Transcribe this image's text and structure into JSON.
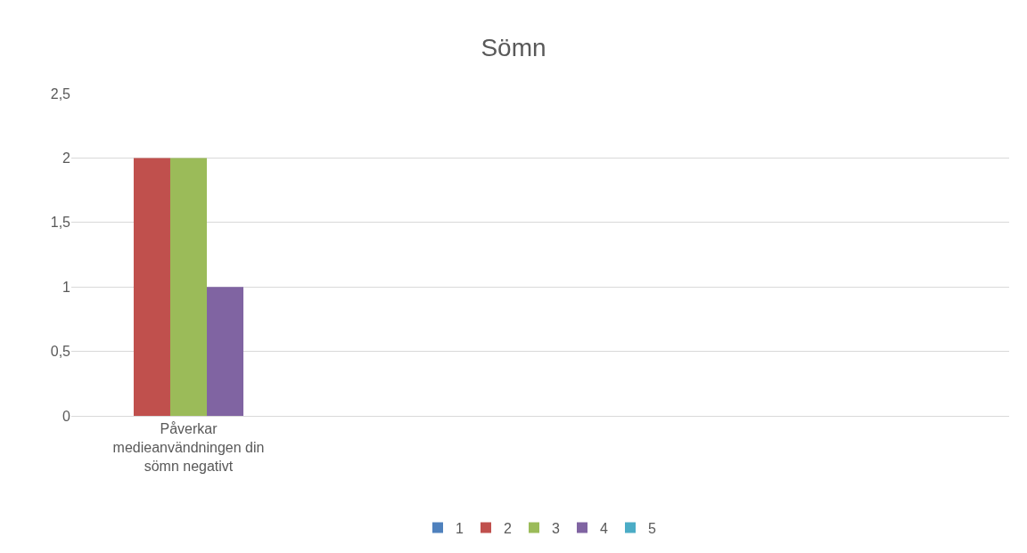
{
  "chart_data": {
    "type": "bar",
    "title": "Sömn",
    "categories": [
      "Påverkar medieanvändningen din sömn negativt",
      null,
      null,
      null
    ],
    "series": [
      {
        "name": "1",
        "color": "#4f81bd",
        "values": [
          0,
          null,
          null,
          null
        ]
      },
      {
        "name": "2",
        "color": "#c0504d",
        "values": [
          2,
          null,
          null,
          null
        ]
      },
      {
        "name": "3",
        "color": "#9bbb59",
        "values": [
          2,
          null,
          null,
          null
        ]
      },
      {
        "name": "4",
        "color": "#8064a2",
        "values": [
          1,
          null,
          null,
          null
        ]
      },
      {
        "name": "5",
        "color": "#4bacc6",
        "values": [
          0,
          null,
          null,
          null
        ]
      }
    ],
    "ylim": [
      0,
      2.5
    ],
    "yticks": [
      0,
      {
        "value": 0.5,
        "label": "0,5"
      },
      1,
      {
        "value": 1.5,
        "label": "1,5"
      },
      2,
      {
        "value": 2.5,
        "label": "2,5"
      }
    ],
    "grid": "y",
    "legend": "bottom"
  }
}
